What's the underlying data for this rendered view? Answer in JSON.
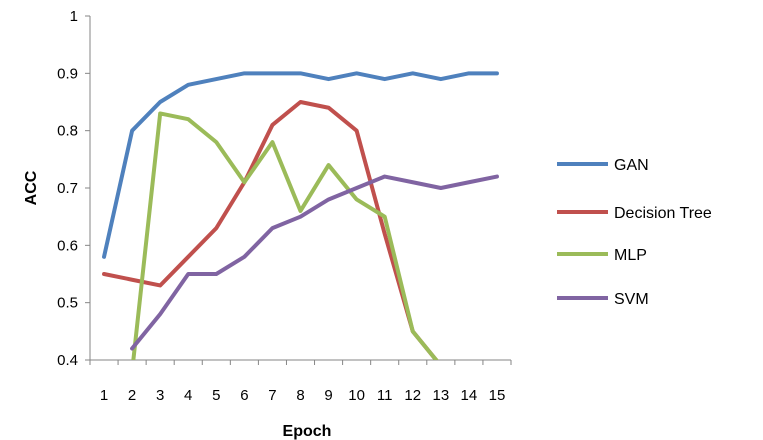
{
  "chart_data": {
    "type": "line",
    "xlabel": "Epoch",
    "ylabel": "ACC",
    "x": [
      1,
      2,
      3,
      4,
      5,
      6,
      7,
      8,
      9,
      10,
      11,
      12,
      13,
      14,
      15
    ],
    "ylim": [
      0.4,
      1
    ],
    "yticks": [
      "0.4",
      "0.5",
      "0.6",
      "0.7",
      "0.8",
      "0.9",
      "1"
    ],
    "xticks": [
      "1",
      "2",
      "3",
      "4",
      "5",
      "6",
      "7",
      "8",
      "9",
      "10",
      "11",
      "12",
      "13",
      "14",
      "15"
    ],
    "grid": false,
    "legend_position": "right",
    "series": [
      {
        "name": "GAN",
        "color": "#4f81bd",
        "values": [
          0.58,
          0.8,
          0.85,
          0.88,
          0.89,
          0.9,
          0.9,
          0.9,
          0.89,
          0.9,
          0.89,
          0.9,
          0.89,
          0.9,
          0.9
        ]
      },
      {
        "name": "Decision Tree",
        "color": "#c0504d",
        "values": [
          0.55,
          0.54,
          0.53,
          0.58,
          0.63,
          0.71,
          0.81,
          0.85,
          0.84,
          0.8,
          0.62,
          0.45,
          0.39,
          null,
          null
        ]
      },
      {
        "name": "MLP",
        "color": "#9bbb59",
        "values": [
          null,
          0.38,
          0.83,
          0.82,
          0.78,
          0.71,
          0.78,
          0.66,
          0.74,
          0.68,
          0.65,
          0.45,
          0.39,
          null,
          null
        ]
      },
      {
        "name": "SVM",
        "color": "#8064a2",
        "values": [
          null,
          0.42,
          0.48,
          0.55,
          0.55,
          0.58,
          0.63,
          0.65,
          0.68,
          0.7,
          0.72,
          0.71,
          0.7,
          0.71,
          0.72
        ]
      }
    ]
  }
}
